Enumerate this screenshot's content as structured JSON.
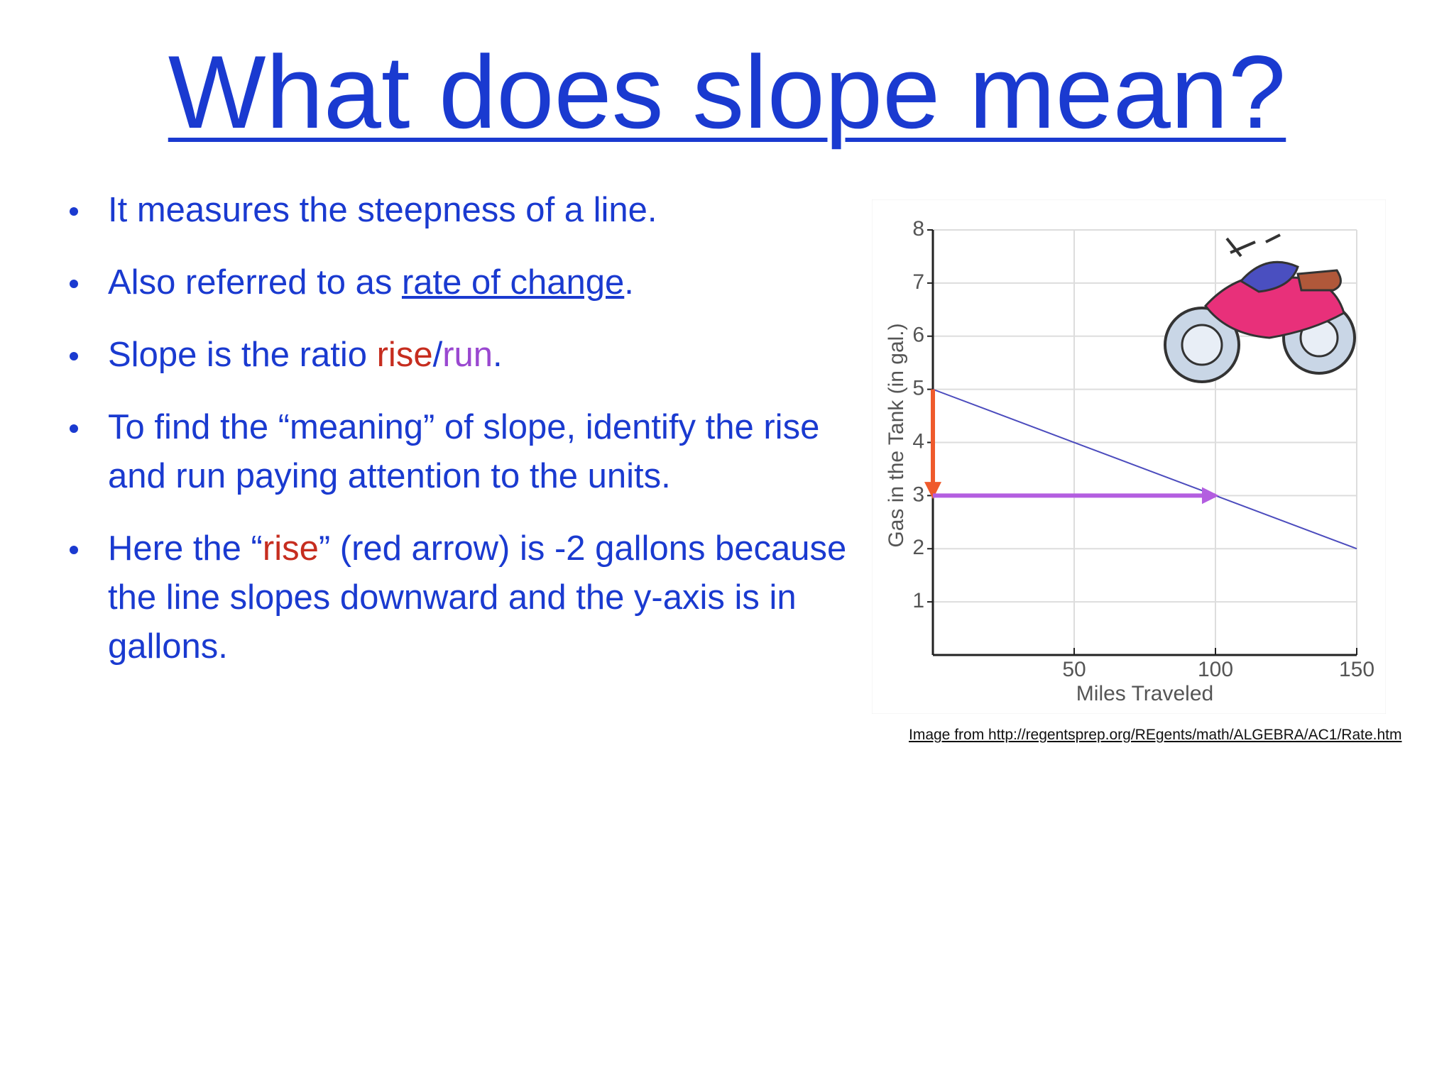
{
  "title": "What does slope mean?",
  "bullets": [
    [
      {
        "text": "It measures the steepness of a line."
      }
    ],
    [
      {
        "text": "Also referred to as "
      },
      {
        "text": "rate of change",
        "underline": true
      },
      {
        "text": "."
      }
    ],
    [
      {
        "text": "Slope is the ratio "
      },
      {
        "text": "rise",
        "color": "#c62d1f"
      },
      {
        "text": "/"
      },
      {
        "text": "run",
        "color": "#9a48d0"
      },
      {
        "text": "."
      }
    ],
    [
      {
        "text": "To find the “meaning” of slope, identify the rise and run paying attention to the units."
      }
    ],
    [
      {
        "text": "Here the “"
      },
      {
        "text": "rise",
        "color": "#c62d1f"
      },
      {
        "text": "” (red arrow) is -2 gallons because the line slopes downward and the y-axis is in gallons."
      }
    ]
  ],
  "chart_data": {
    "type": "line",
    "xlabel": "Miles Traveled",
    "ylabel": "Gas in the Tank  (in gal.)",
    "x": [
      0,
      150
    ],
    "values": [
      5,
      2
    ],
    "color": "#4b4bbd",
    "xlim": [
      0,
      150
    ],
    "ylim": [
      0,
      8
    ],
    "xticks": [
      50,
      100,
      150
    ],
    "yticks": [
      1,
      2,
      3,
      4,
      5,
      6,
      7,
      8
    ],
    "grid": true,
    "arrows": [
      {
        "color": "#ef5a2c",
        "x": [
          0,
          0
        ],
        "y": [
          5,
          3
        ]
      },
      {
        "color": "#b35ee0",
        "x": [
          0,
          100
        ],
        "y": [
          3,
          3
        ]
      }
    ]
  },
  "credit": "Image from http://regentsprep.org/REgents/math/ALGEBRA/AC1/Rate.htm"
}
